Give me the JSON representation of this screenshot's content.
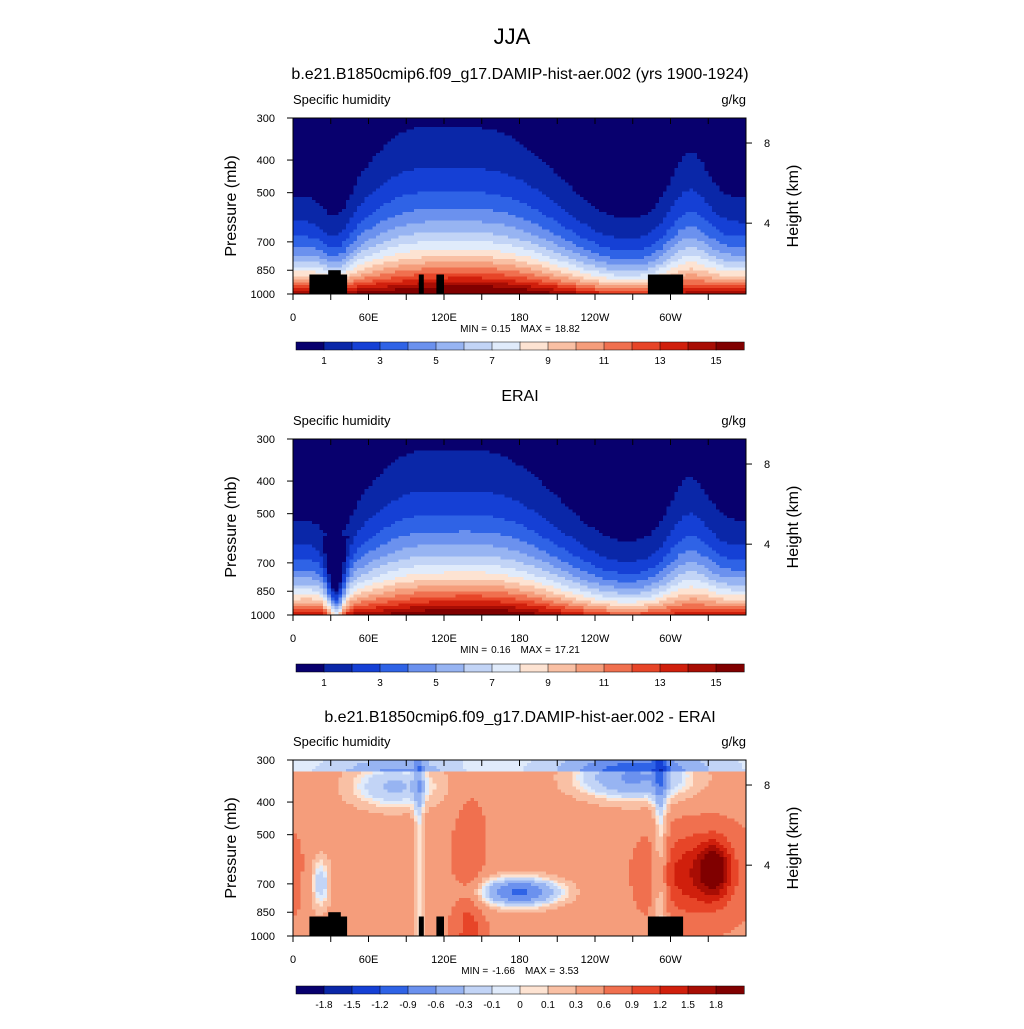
{
  "figure": {
    "title": "JJA"
  },
  "axes": {
    "left_label": "Pressure (mb)",
    "right_label": "Height (km)",
    "pressure_ticks": [
      300,
      400,
      500,
      700,
      850,
      1000
    ],
    "height_ticks": [
      8,
      4
    ],
    "lon_ticks": [
      "0",
      "60E",
      "120E",
      "180",
      "120W",
      "60W"
    ]
  },
  "chart_data": [
    {
      "type": "heatmap",
      "title": "b.e21.B1850cmip6.f09_g17.DAMIP-hist-aer.002 (yrs 1900-1924)",
      "left_string": "Specific humidity",
      "right_string": "g/kg",
      "xlabel": "",
      "ylabel": "Pressure (mb)",
      "y2label": "Height (km)",
      "xlim": [
        0,
        360
      ],
      "ylim": [
        1000,
        300
      ],
      "yscale": "log",
      "min_label": "MIN =",
      "min": "0.15",
      "max_label": "MAX =",
      "max": "18.82",
      "colorbar": {
        "levels": [
          0,
          1,
          2,
          3,
          4,
          5,
          6,
          7,
          8,
          9,
          10,
          11,
          12,
          13,
          14,
          15
        ],
        "labels": [
          "1",
          "3",
          "5",
          "7",
          "9",
          "11",
          "13",
          "15"
        ],
        "colors": [
          "#08006e",
          "#0a27a8",
          "#1540d5",
          "#2f63e6",
          "#6b91ee",
          "#97b4f2",
          "#c2d4f6",
          "#e0ebfb",
          "#fde3d2",
          "#f9c0a4",
          "#f59d7b",
          "#f0704f",
          "#e74528",
          "#d01f0c",
          "#a80d04",
          "#800000"
        ]
      }
    },
    {
      "type": "heatmap",
      "title": "ERAI",
      "left_string": "Specific humidity",
      "right_string": "g/kg",
      "xlabel": "",
      "ylabel": "Pressure (mb)",
      "y2label": "Height (km)",
      "xlim": [
        0,
        360
      ],
      "ylim": [
        1000,
        300
      ],
      "yscale": "log",
      "min_label": "MIN =",
      "min": "0.16",
      "max_label": "MAX =",
      "max": "17.21",
      "colorbar": {
        "levels": [
          0,
          1,
          2,
          3,
          4,
          5,
          6,
          7,
          8,
          9,
          10,
          11,
          12,
          13,
          14,
          15
        ],
        "labels": [
          "1",
          "3",
          "5",
          "7",
          "9",
          "11",
          "13",
          "15"
        ],
        "colors": [
          "#08006e",
          "#0a27a8",
          "#1540d5",
          "#2f63e6",
          "#6b91ee",
          "#97b4f2",
          "#c2d4f6",
          "#e0ebfb",
          "#fde3d2",
          "#f9c0a4",
          "#f59d7b",
          "#f0704f",
          "#e74528",
          "#d01f0c",
          "#a80d04",
          "#800000"
        ]
      }
    },
    {
      "type": "heatmap",
      "title": "b.e21.B1850cmip6.f09_g17.DAMIP-hist-aer.002 - ERAI",
      "left_string": "Specific humidity",
      "right_string": "g/kg",
      "xlabel": "",
      "ylabel": "Pressure (mb)",
      "y2label": "Height (km)",
      "xlim": [
        0,
        360
      ],
      "ylim": [
        1000,
        300
      ],
      "yscale": "log",
      "min_label": "MIN =",
      "min": "-1.66",
      "max_label": "MAX =",
      "max": "3.53",
      "colorbar": {
        "levels": [
          -1.8,
          -1.5,
          -1.2,
          -0.9,
          -0.6,
          -0.3,
          -0.1,
          0,
          0.1,
          0.3,
          0.6,
          0.9,
          1.2,
          1.5,
          1.8
        ],
        "labels": [
          "-1.8",
          "-1.5",
          "-1.2",
          "-0.9",
          "-0.6",
          "-0.3",
          "-0.1",
          "0",
          "0.1",
          "0.3",
          "0.6",
          "0.9",
          "1.2",
          "1.5",
          "1.8"
        ],
        "colors": [
          "#08006e",
          "#0a27a8",
          "#1540d5",
          "#2f63e6",
          "#6b91ee",
          "#97b4f2",
          "#c2d4f6",
          "#e0ebfb",
          "#fde3d2",
          "#f9c0a4",
          "#f59d7b",
          "#f0704f",
          "#e74528",
          "#d01f0c",
          "#a80d04",
          "#800000"
        ]
      }
    }
  ]
}
